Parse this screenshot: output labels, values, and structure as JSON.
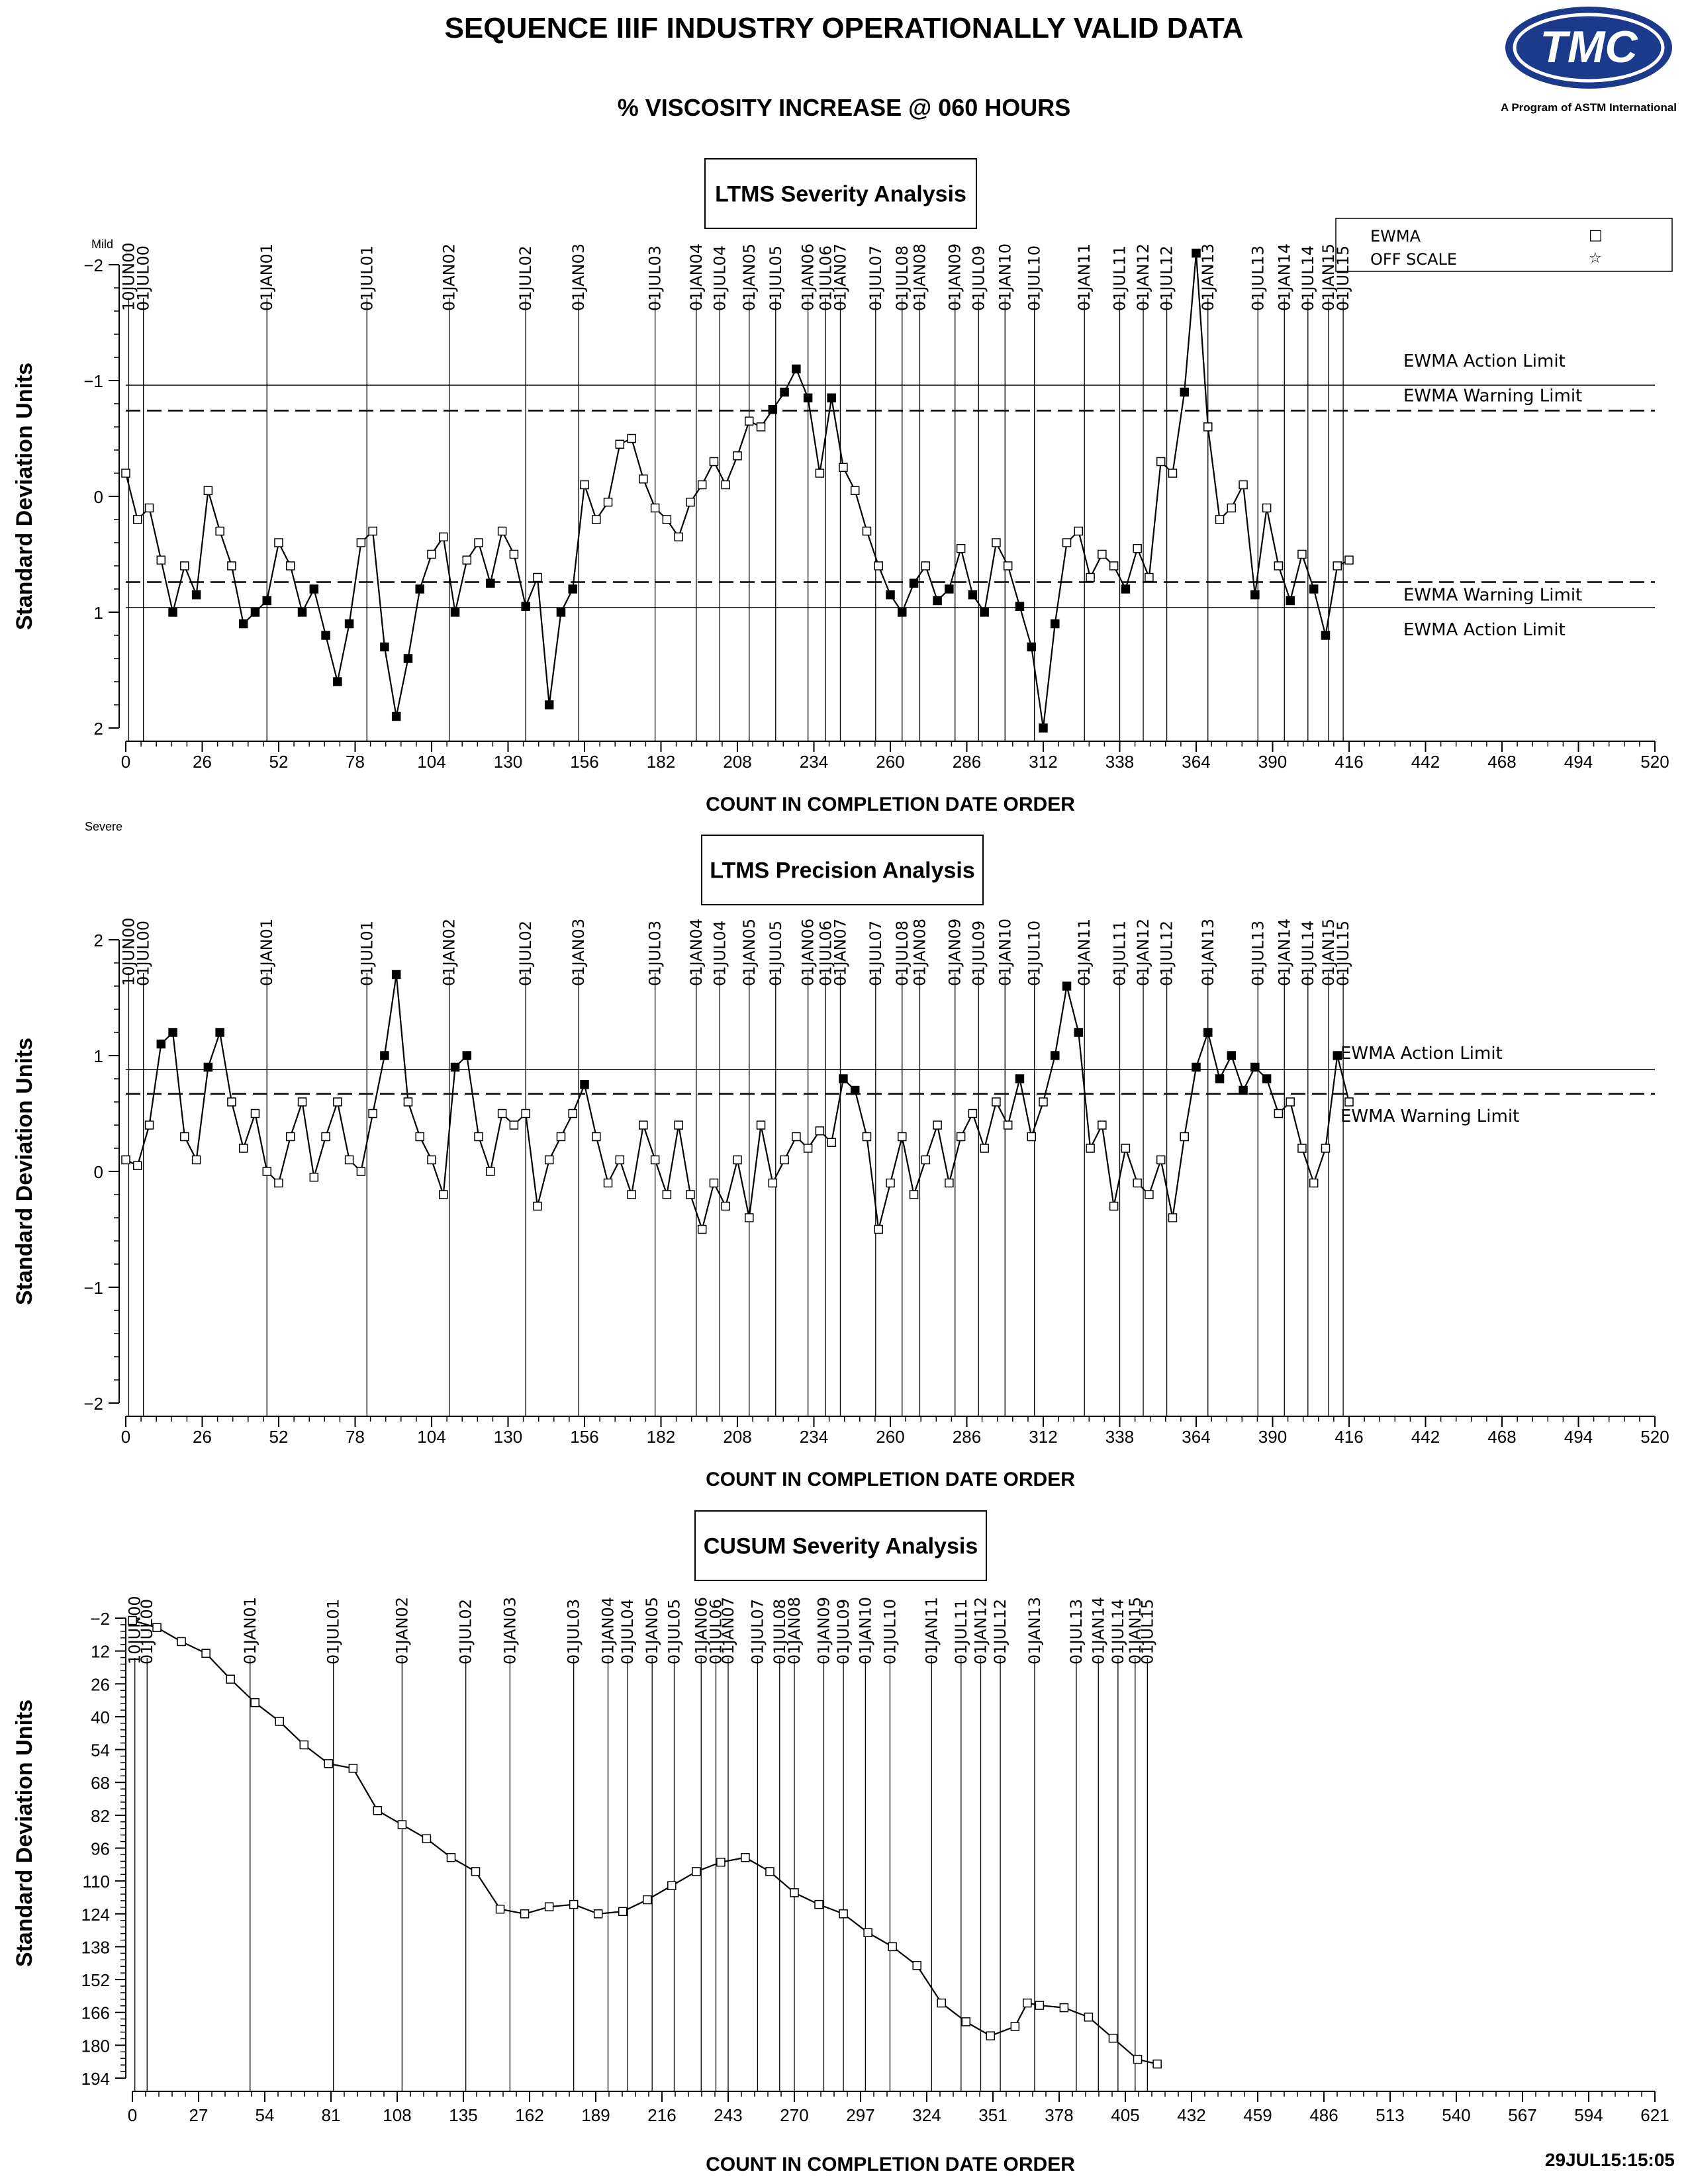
{
  "header": {
    "title": "SEQUENCE IIIF INDUSTRY OPERATIONALLY VALID DATA",
    "subtitle": "% VISCOSITY INCREASE @ 060 HOURS",
    "logo_text": "TMC",
    "logo_caption": "A Program of ASTM International",
    "timestamp": "29JUL15:15:05"
  },
  "colors": {
    "line": "#000000",
    "background": "#ffffff",
    "logo_blue": "#1b3a8c"
  },
  "legend": [
    {
      "label": "EWMA",
      "symbol": "□"
    },
    {
      "label": "OFF SCALE",
      "symbol": "☆"
    }
  ],
  "chart_data": [
    {
      "type": "line",
      "title": "LTMS Severity Analysis",
      "xlabel": "COUNT IN COMPLETION DATE ORDER",
      "ylabel": "Standard Deviation Units",
      "y_reversed": true,
      "ylim": [
        -2,
        2
      ],
      "xlim": [
        0,
        520
      ],
      "x_ticks": [
        0,
        26,
        52,
        78,
        104,
        130,
        156,
        182,
        208,
        234,
        260,
        286,
        312,
        338,
        364,
        390,
        416,
        442,
        468,
        494,
        520
      ],
      "y_ticks": [
        -2,
        -1,
        0,
        1,
        2
      ],
      "corner_labels": {
        "top": "Mild",
        "bottom": "Severe"
      },
      "reference_lines": [
        {
          "label": "EWMA Action Limit",
          "y": -0.96,
          "style": "solid"
        },
        {
          "label": "EWMA Warning Limit",
          "y": -0.74,
          "style": "dashed"
        },
        {
          "label": "EWMA Warning Limit",
          "y": 0.74,
          "style": "dashed"
        },
        {
          "label": "EWMA Action Limit",
          "y": 0.96,
          "style": "solid"
        }
      ],
      "date_markers": [
        {
          "x": 1,
          "label": "10JUN00"
        },
        {
          "x": 6,
          "label": "01JUL00"
        },
        {
          "x": 48,
          "label": "01JAN01"
        },
        {
          "x": 82,
          "label": "01JUL01"
        },
        {
          "x": 110,
          "label": "01JAN02"
        },
        {
          "x": 136,
          "label": "01JUL02"
        },
        {
          "x": 154,
          "label": "01JAN03"
        },
        {
          "x": 180,
          "label": "01JUL03"
        },
        {
          "x": 194,
          "label": "01JAN04"
        },
        {
          "x": 202,
          "label": "01JUL04"
        },
        {
          "x": 212,
          "label": "01JAN05"
        },
        {
          "x": 221,
          "label": "01JUL05"
        },
        {
          "x": 232,
          "label": "01JAN06"
        },
        {
          "x": 238,
          "label": "01JUL06"
        },
        {
          "x": 243,
          "label": "01JAN07"
        },
        {
          "x": 255,
          "label": "01JUL07"
        },
        {
          "x": 264,
          "label": "01JUL08"
        },
        {
          "x": 270,
          "label": "01JAN08"
        },
        {
          "x": 282,
          "label": "01JAN09"
        },
        {
          "x": 290,
          "label": "01JUL09"
        },
        {
          "x": 299,
          "label": "01JAN10"
        },
        {
          "x": 309,
          "label": "01JUL10"
        },
        {
          "x": 326,
          "label": "01JAN11"
        },
        {
          "x": 338,
          "label": "01JUL11"
        },
        {
          "x": 346,
          "label": "01JAN12"
        },
        {
          "x": 354,
          "label": "01JUL12"
        },
        {
          "x": 368,
          "label": "01JAN13"
        },
        {
          "x": 385,
          "label": "01JUL13"
        },
        {
          "x": 394,
          "label": "01JAN14"
        },
        {
          "x": 402,
          "label": "01JUL14"
        },
        {
          "x": 409,
          "label": "01JAN15"
        },
        {
          "x": 414,
          "label": "01JUL15"
        }
      ],
      "series": [
        {
          "x": [
            0,
            4,
            8,
            12,
            16,
            20,
            24,
            28,
            32,
            36,
            40,
            44,
            48,
            52,
            56,
            60,
            64,
            68,
            72,
            76,
            80,
            84,
            88,
            92,
            96,
            100,
            104,
            108,
            112,
            116,
            120,
            124,
            128,
            132,
            136,
            140,
            144,
            148,
            152,
            156,
            160,
            164,
            168,
            172,
            176,
            180,
            184,
            188,
            192,
            196,
            200,
            204,
            208,
            212,
            216,
            220,
            224,
            228,
            232,
            236,
            240,
            244,
            248,
            252,
            256,
            260,
            264,
            268,
            272,
            276,
            280,
            284,
            288,
            292,
            296,
            300,
            304,
            308,
            312,
            316,
            320,
            324,
            328,
            332,
            336,
            340,
            344,
            348,
            352,
            356,
            360,
            364,
            368,
            372,
            376,
            380,
            384,
            388,
            392,
            396,
            400,
            404,
            408,
            412,
            416
          ],
          "values": [
            -0.2,
            0.2,
            0.1,
            0.55,
            1.0,
            0.6,
            0.85,
            -0.05,
            0.3,
            0.6,
            1.1,
            1.0,
            0.9,
            0.4,
            0.6,
            1.0,
            0.8,
            1.2,
            1.6,
            1.1,
            0.4,
            0.3,
            1.3,
            1.9,
            1.4,
            0.8,
            0.5,
            0.35,
            1.0,
            0.55,
            0.4,
            0.75,
            0.3,
            0.5,
            0.95,
            0.7,
            1.8,
            1.0,
            0.8,
            -0.1,
            0.2,
            0.05,
            -0.45,
            -0.5,
            -0.15,
            0.1,
            0.2,
            0.35,
            0.05,
            -0.1,
            -0.3,
            -0.1,
            -0.35,
            -0.65,
            -0.6,
            -0.75,
            -0.9,
            -1.1,
            -0.85,
            -0.2,
            -0.85,
            -0.25,
            -0.05,
            0.3,
            0.6,
            0.85,
            1.0,
            0.75,
            0.6,
            0.9,
            0.8,
            0.45,
            0.85,
            1.0,
            0.4,
            0.6,
            0.95,
            1.3,
            2.0,
            1.1,
            0.4,
            0.3,
            0.7,
            0.5,
            0.6,
            0.8,
            0.45,
            0.7,
            -0.3,
            -0.2,
            -0.9,
            -2.1,
            -0.6,
            0.2,
            0.1,
            -0.1,
            0.85,
            0.1,
            0.6,
            0.9,
            0.5,
            0.8,
            1.2,
            0.6,
            0.55
          ]
        }
      ]
    },
    {
      "type": "line",
      "title": "LTMS Precision Analysis",
      "xlabel": "COUNT IN COMPLETION DATE ORDER",
      "ylabel": "Standard Deviation Units",
      "ylim": [
        -2,
        2
      ],
      "xlim": [
        0,
        520
      ],
      "x_ticks": [
        0,
        26,
        52,
        78,
        104,
        130,
        156,
        182,
        208,
        234,
        260,
        286,
        312,
        338,
        364,
        390,
        416,
        442,
        468,
        494,
        520
      ],
      "y_ticks": [
        -2,
        -1,
        0,
        1,
        2
      ],
      "reference_lines": [
        {
          "label": "EWMA Action Limit",
          "y": 0.88,
          "style": "solid"
        },
        {
          "label": "EWMA Warning Limit",
          "y": 0.67,
          "style": "dashed"
        }
      ],
      "date_markers": [
        {
          "x": 1,
          "label": "10JUN00"
        },
        {
          "x": 6,
          "label": "01JUL00"
        },
        {
          "x": 48,
          "label": "01JAN01"
        },
        {
          "x": 82,
          "label": "01JUL01"
        },
        {
          "x": 110,
          "label": "01JAN02"
        },
        {
          "x": 136,
          "label": "01JUL02"
        },
        {
          "x": 154,
          "label": "01JAN03"
        },
        {
          "x": 180,
          "label": "01JUL03"
        },
        {
          "x": 194,
          "label": "01JAN04"
        },
        {
          "x": 202,
          "label": "01JUL04"
        },
        {
          "x": 212,
          "label": "01JAN05"
        },
        {
          "x": 221,
          "label": "01JUL05"
        },
        {
          "x": 232,
          "label": "01JAN06"
        },
        {
          "x": 238,
          "label": "01JUL06"
        },
        {
          "x": 243,
          "label": "01JAN07"
        },
        {
          "x": 255,
          "label": "01JUL07"
        },
        {
          "x": 264,
          "label": "01JUL08"
        },
        {
          "x": 270,
          "label": "01JAN08"
        },
        {
          "x": 282,
          "label": "01JAN09"
        },
        {
          "x": 290,
          "label": "01JUL09"
        },
        {
          "x": 299,
          "label": "01JAN10"
        },
        {
          "x": 309,
          "label": "01JUL10"
        },
        {
          "x": 326,
          "label": "01JAN11"
        },
        {
          "x": 338,
          "label": "01JUL11"
        },
        {
          "x": 346,
          "label": "01JAN12"
        },
        {
          "x": 354,
          "label": "01JUL12"
        },
        {
          "x": 368,
          "label": "01JAN13"
        },
        {
          "x": 385,
          "label": "01JUL13"
        },
        {
          "x": 394,
          "label": "01JAN14"
        },
        {
          "x": 402,
          "label": "01JUL14"
        },
        {
          "x": 409,
          "label": "01JAN15"
        },
        {
          "x": 414,
          "label": "01JUL15"
        }
      ],
      "series": [
        {
          "x": [
            0,
            4,
            8,
            12,
            16,
            20,
            24,
            28,
            32,
            36,
            40,
            44,
            48,
            52,
            56,
            60,
            64,
            68,
            72,
            76,
            80,
            84,
            88,
            92,
            96,
            100,
            104,
            108,
            112,
            116,
            120,
            124,
            128,
            132,
            136,
            140,
            144,
            148,
            152,
            156,
            160,
            164,
            168,
            172,
            176,
            180,
            184,
            188,
            192,
            196,
            200,
            204,
            208,
            212,
            216,
            220,
            224,
            228,
            232,
            236,
            240,
            244,
            248,
            252,
            256,
            260,
            264,
            268,
            272,
            276,
            280,
            284,
            288,
            292,
            296,
            300,
            304,
            308,
            312,
            316,
            320,
            324,
            328,
            332,
            336,
            340,
            344,
            348,
            352,
            356,
            360,
            364,
            368,
            372,
            376,
            380,
            384,
            388,
            392,
            396,
            400,
            404,
            408,
            412,
            416
          ],
          "values": [
            0.1,
            0.05,
            0.4,
            1.1,
            1.2,
            0.3,
            0.1,
            0.9,
            1.2,
            0.6,
            0.2,
            0.5,
            0.0,
            -0.1,
            0.3,
            0.6,
            -0.05,
            0.3,
            0.6,
            0.1,
            0.0,
            0.5,
            1.0,
            1.7,
            0.6,
            0.3,
            0.1,
            -0.2,
            0.9,
            1.0,
            0.3,
            0.0,
            0.5,
            0.4,
            0.5,
            -0.3,
            0.1,
            0.3,
            0.5,
            0.75,
            0.3,
            -0.1,
            0.1,
            -0.2,
            0.4,
            0.1,
            -0.2,
            0.4,
            -0.2,
            -0.5,
            -0.1,
            -0.3,
            0.1,
            -0.4,
            0.4,
            -0.1,
            0.1,
            0.3,
            0.2,
            0.35,
            0.25,
            0.8,
            0.7,
            0.3,
            -0.5,
            -0.1,
            0.3,
            -0.2,
            0.1,
            0.4,
            -0.1,
            0.3,
            0.5,
            0.2,
            0.6,
            0.4,
            0.8,
            0.3,
            0.6,
            1.0,
            1.6,
            1.2,
            0.2,
            0.4,
            -0.3,
            0.2,
            -0.1,
            -0.2,
            0.1,
            -0.4,
            0.3,
            0.9,
            1.2,
            0.8,
            1.0,
            0.7,
            0.9,
            0.8,
            0.5,
            0.6,
            0.2,
            -0.1,
            0.2,
            1.0,
            0.6
          ]
        }
      ]
    },
    {
      "type": "line",
      "title": "CUSUM Severity Analysis",
      "xlabel": "COUNT IN COMPLETION DATE ORDER",
      "ylabel": "Standard Deviation Units",
      "y_reversed": true,
      "ylim": [
        -2,
        194
      ],
      "xlim": [
        0,
        621
      ],
      "x_ticks": [
        0,
        27,
        54,
        81,
        108,
        135,
        162,
        189,
        216,
        243,
        270,
        297,
        324,
        351,
        378,
        405,
        432,
        459,
        486,
        513,
        540,
        567,
        594,
        621
      ],
      "y_ticks": [
        -2,
        12,
        26,
        40,
        54,
        68,
        82,
        96,
        110,
        124,
        138,
        152,
        166,
        180,
        194
      ],
      "date_markers": [
        {
          "x": 1,
          "label": "10JUN00"
        },
        {
          "x": 6,
          "label": "01JUL00"
        },
        {
          "x": 48,
          "label": "01JAN01"
        },
        {
          "x": 82,
          "label": "01JUL01"
        },
        {
          "x": 110,
          "label": "01JAN02"
        },
        {
          "x": 136,
          "label": "01JUL02"
        },
        {
          "x": 154,
          "label": "01JAN03"
        },
        {
          "x": 180,
          "label": "01JUL03"
        },
        {
          "x": 194,
          "label": "01JAN04"
        },
        {
          "x": 202,
          "label": "01JUL04"
        },
        {
          "x": 212,
          "label": "01JAN05"
        },
        {
          "x": 221,
          "label": "01JUL05"
        },
        {
          "x": 232,
          "label": "01JAN06"
        },
        {
          "x": 238,
          "label": "01JUL06"
        },
        {
          "x": 243,
          "label": "01JAN07"
        },
        {
          "x": 255,
          "label": "01JUL07"
        },
        {
          "x": 264,
          "label": "01JUL08"
        },
        {
          "x": 270,
          "label": "01JAN08"
        },
        {
          "x": 282,
          "label": "01JAN09"
        },
        {
          "x": 290,
          "label": "01JUL09"
        },
        {
          "x": 299,
          "label": "01JAN10"
        },
        {
          "x": 309,
          "label": "01JUL10"
        },
        {
          "x": 326,
          "label": "01JAN11"
        },
        {
          "x": 338,
          "label": "01JUL11"
        },
        {
          "x": 346,
          "label": "01JAN12"
        },
        {
          "x": 354,
          "label": "01JUL12"
        },
        {
          "x": 368,
          "label": "01JAN13"
        },
        {
          "x": 385,
          "label": "01JUL13"
        },
        {
          "x": 394,
          "label": "01JAN14"
        },
        {
          "x": 402,
          "label": "01JUL14"
        },
        {
          "x": 409,
          "label": "01JAN15"
        },
        {
          "x": 414,
          "label": "01JUL15"
        }
      ],
      "series": [
        {
          "x": [
            0,
            10,
            20,
            30,
            40,
            50,
            60,
            70,
            80,
            90,
            100,
            110,
            120,
            130,
            140,
            150,
            160,
            170,
            180,
            190,
            200,
            210,
            220,
            230,
            240,
            250,
            260,
            270,
            280,
            290,
            300,
            310,
            320,
            330,
            340,
            350,
            360,
            365,
            370,
            380,
            390,
            400,
            410,
            418
          ],
          "values": [
            -1,
            2,
            8,
            13,
            24,
            34,
            42,
            52,
            60,
            62,
            80,
            86,
            92,
            100,
            106,
            122,
            124,
            121,
            120,
            124,
            123,
            118,
            112,
            106,
            102,
            100,
            106,
            115,
            120,
            124,
            132,
            138,
            146,
            162,
            170,
            176,
            172,
            162,
            163,
            164,
            168,
            177,
            186,
            188
          ]
        }
      ]
    }
  ]
}
